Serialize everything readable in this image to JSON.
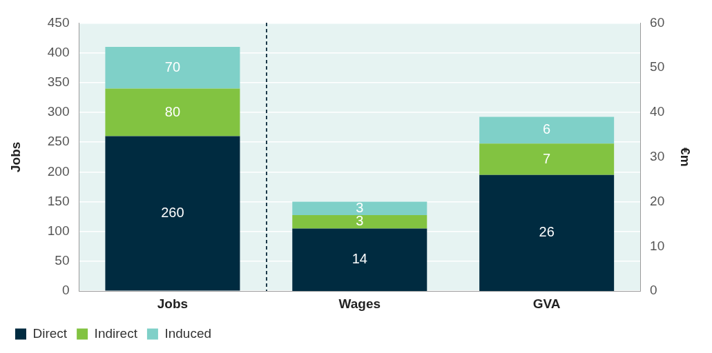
{
  "chart_data": {
    "type": "bar",
    "categories": [
      "Jobs",
      "Wages",
      "GVA"
    ],
    "ylabel": "Jobs",
    "y2label": "€m",
    "stacked": true,
    "ylim": [
      0,
      450
    ],
    "yticks": [
      0,
      50,
      100,
      150,
      200,
      250,
      300,
      350,
      400,
      450
    ],
    "y2lim": [
      0,
      60
    ],
    "y2ticks": [
      0,
      10,
      20,
      30,
      40,
      50,
      60
    ],
    "grid": "y",
    "legend": "bottom left",
    "data_labels": true,
    "series": [
      {
        "name": "Direct",
        "color": "#002b40",
        "values": [
          260,
          null,
          null
        ]
      },
      {
        "name": "Indirect",
        "color": "#82c341",
        "values": [
          80,
          null,
          null
        ]
      },
      {
        "name": "Induced",
        "color": "#7fd0c8",
        "values": [
          70,
          null,
          null
        ]
      },
      {
        "color": "#002b40",
        "axis": "y2",
        "values": [
          null,
          14,
          26
        ]
      },
      {
        "color": "#82c341",
        "axis": "y2",
        "values": [
          null,
          3,
          7
        ]
      },
      {
        "color": "#7fd0c8",
        "axis": "y2",
        "values": [
          null,
          3,
          6
        ]
      }
    ]
  }
}
